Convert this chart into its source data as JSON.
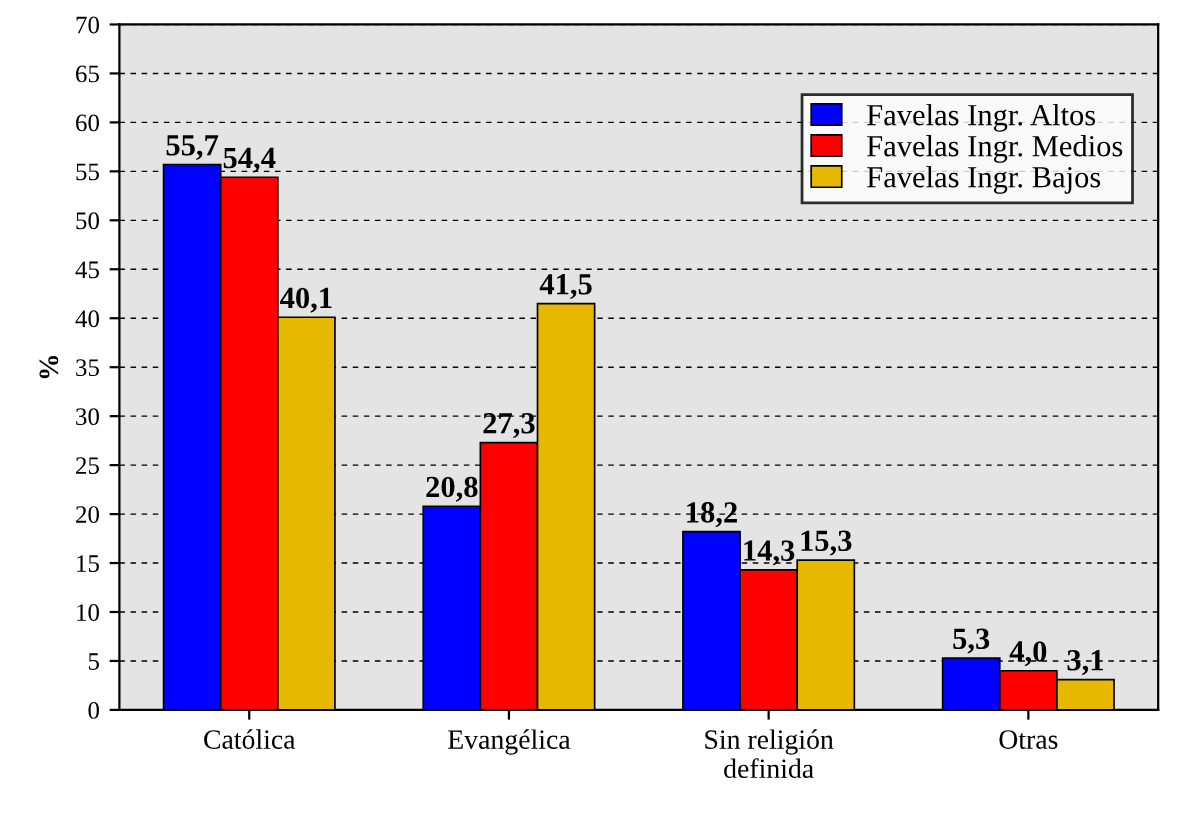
{
  "chart_data": {
    "type": "bar",
    "ylabel": "%",
    "categories": [
      "Católica",
      "Evangélica",
      "Sin religión\ndefinida",
      "Otras"
    ],
    "series": [
      {
        "name": "Favelas Ingr. Altos",
        "color": "#0000ff",
        "values": [
          55.7,
          20.8,
          18.2,
          5.3
        ],
        "value_labels": [
          "55,7",
          "20,8",
          "18,2",
          "5,3"
        ]
      },
      {
        "name": "Favelas Ingr. Medios",
        "color": "#ff0000",
        "values": [
          54.4,
          27.3,
          14.3,
          4.0
        ],
        "value_labels": [
          "54,4",
          "27,3",
          "14,3",
          "4,0"
        ]
      },
      {
        "name": "Favelas Ingr. Bajos",
        "color": "#e6b800",
        "values": [
          40.1,
          41.5,
          15.3,
          3.1
        ],
        "value_labels": [
          "40,1",
          "41,5",
          "15,3",
          "3,1"
        ]
      }
    ],
    "ylim": [
      0,
      70
    ],
    "yticks": [
      0,
      5,
      10,
      15,
      20,
      25,
      30,
      35,
      40,
      45,
      50,
      55,
      60,
      65,
      70
    ],
    "grid": "y",
    "legend": "top right"
  }
}
